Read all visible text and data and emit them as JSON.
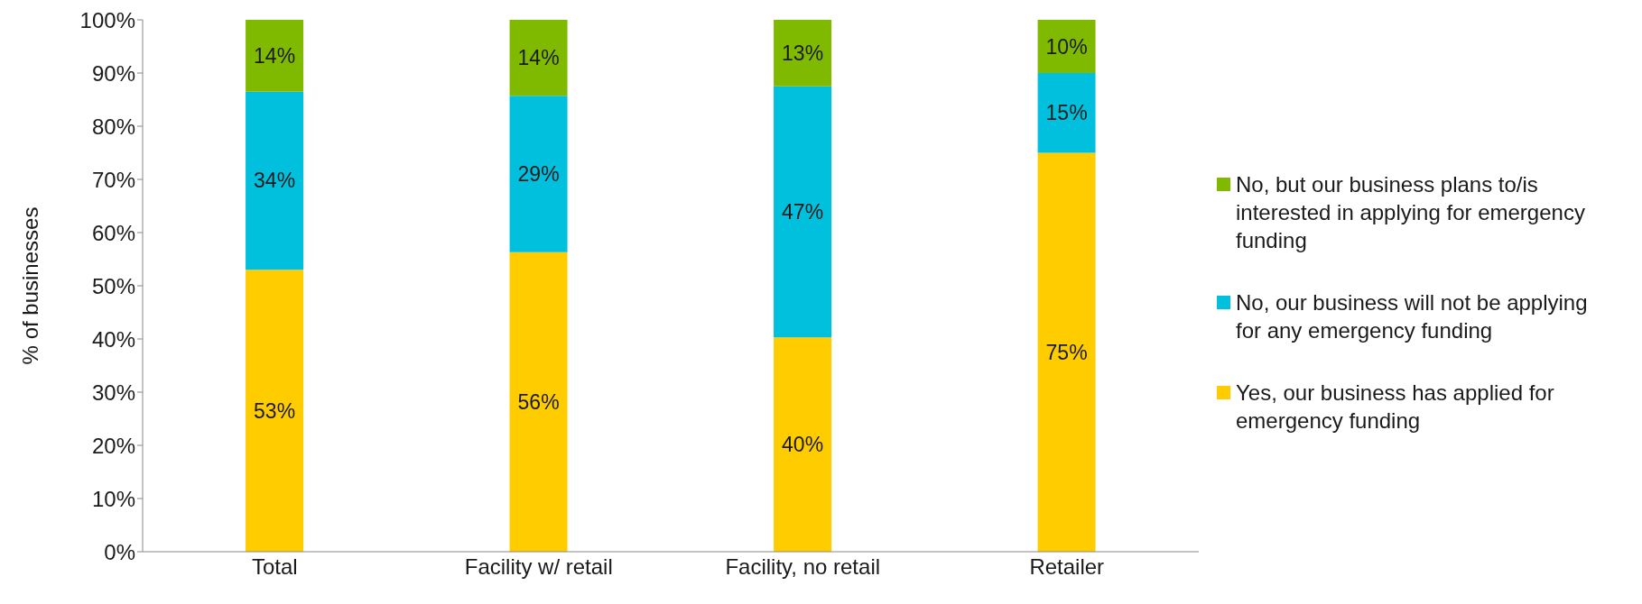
{
  "chart_data": {
    "type": "bar",
    "stacked": true,
    "ylabel": "% of businesses",
    "categories": [
      "Total",
      "Facility w/ retail",
      "Facility, no retail",
      "Retailer"
    ],
    "series": [
      {
        "name": "Yes, our business has applied for emergency funding",
        "color": "#ffcc00",
        "values": [
          53,
          56.3,
          40.3,
          75
        ],
        "value_labels": [
          "53%",
          "56%",
          "40%",
          "75%"
        ]
      },
      {
        "name": "No, our business will not be applying for any emergency funding",
        "color": "#00c0de",
        "values": [
          33.5,
          29.4,
          47.2,
          15
        ],
        "value_labels": [
          "34%",
          "29%",
          "47%",
          "15%"
        ]
      },
      {
        "name": "No, but our business plans to/is interested in applying for emergency funding",
        "color": "#7fba00",
        "values": [
          13.5,
          14.3,
          12.5,
          10
        ],
        "value_labels": [
          "14%",
          "14%",
          "13%",
          "10%"
        ]
      }
    ],
    "ylim": [
      0,
      100
    ],
    "yticks": [
      {
        "value": 0,
        "label": "0%"
      },
      {
        "value": 10,
        "label": "10%"
      },
      {
        "value": 20,
        "label": "20%"
      },
      {
        "value": 30,
        "label": "30%"
      },
      {
        "value": 40,
        "label": "40%"
      },
      {
        "value": 50,
        "label": "50%"
      },
      {
        "value": 60,
        "label": "60%"
      },
      {
        "value": 70,
        "label": "70%"
      },
      {
        "value": 80,
        "label": "80%"
      },
      {
        "value": 90,
        "label": "90%"
      },
      {
        "value": 100,
        "label": "100%"
      }
    ],
    "legend": "right"
  }
}
